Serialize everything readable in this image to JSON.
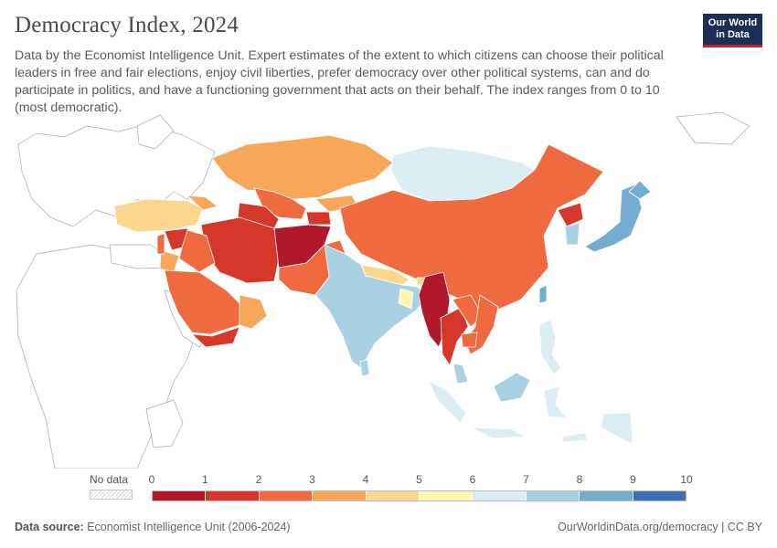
{
  "title": "Democracy Index, 2024",
  "subtitle": "Data by the Economist Intelligence Unit. Expert estimates of the extent to which citizens can choose their political leaders in free and fair elections, enjoy civil liberties, prefer democracy over other political systems, can and do participate in politics, and have a functioning government that acts on their behalf. The index ranges from 0 to 10 (most democratic).",
  "logo": {
    "line1": "Our World",
    "line2": "in Data"
  },
  "legend": {
    "no_data_label": "No data",
    "ticks": [
      "0",
      "1",
      "2",
      "3",
      "4",
      "5",
      "6",
      "7",
      "8",
      "9",
      "10"
    ],
    "colors": [
      "#b2182b",
      "#d6372b",
      "#ef6a3e",
      "#f8a65a",
      "#fdd68e",
      "#fff7b2",
      "#dcecf3",
      "#a8d1e3",
      "#75acd2",
      "#3e6fb0"
    ]
  },
  "footer": {
    "source_label": "Data source:",
    "source_text": "Economist Intelligence Unit (2006-2024)",
    "credit": "OurWorldinData.org/democracy | CC BY"
  },
  "colors": {
    "nodata_fill": "#ffffff",
    "border": "#9a9a9a",
    "text": "#555555"
  }
}
